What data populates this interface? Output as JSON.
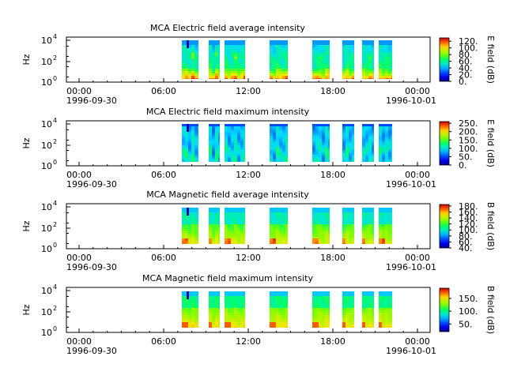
{
  "chart_data": [
    {
      "type": "heatmap",
      "title": "MCA  Electric field average intensity",
      "ylabel": "Hz",
      "colorbar_label": "E field (dB)",
      "colorbar_ticks": [
        "0.",
        "20.",
        "40.",
        "60.",
        "80.",
        "100.",
        "120."
      ],
      "colorbar_range": [
        0,
        130
      ],
      "y_ticks": [
        {
          "base": "10",
          "exp": "0"
        },
        {
          "base": "10",
          "exp": "2"
        },
        {
          "base": "10",
          "exp": "4"
        }
      ],
      "x_ticks": [
        {
          "time": "00:00",
          "date": "1996-09-30"
        },
        {
          "time": "06:00",
          "date": ""
        },
        {
          "time": "12:00",
          "date": ""
        },
        {
          "time": "18:00",
          "date": ""
        },
        {
          "time": "00:00",
          "date": "1996-10-01"
        }
      ],
      "x_range_hours": [
        0,
        26
      ],
      "data_intervals_hours": [
        [
          8.3,
          9.9
        ],
        [
          11.8,
          12.6
        ],
        [
          13.3,
          15.1
        ],
        [
          18.4,
          19.5
        ],
        [
          21.2,
          22.9
        ],
        [
          25.2,
          26.3
        ],
        [
          27.6,
          28.9
        ],
        [
          30.0,
          31.2
        ]
      ],
      "pattern": "e_avg"
    },
    {
      "type": "heatmap",
      "title": "MCA  Electric field maximum intensity",
      "ylabel": "Hz",
      "colorbar_label": "E field (dB)",
      "colorbar_ticks": [
        "0.",
        "50.",
        "100.",
        "150.",
        "200.",
        "250."
      ],
      "colorbar_range": [
        0,
        260
      ],
      "y_ticks": [
        {
          "base": "10",
          "exp": "0"
        },
        {
          "base": "10",
          "exp": "2"
        },
        {
          "base": "10",
          "exp": "4"
        }
      ],
      "x_ticks": [
        {
          "time": "00:00",
          "date": "1996-09-30"
        },
        {
          "time": "06:00",
          "date": ""
        },
        {
          "time": "12:00",
          "date": ""
        },
        {
          "time": "18:00",
          "date": ""
        },
        {
          "time": "00:00",
          "date": "1996-10-01"
        }
      ],
      "x_range_hours": [
        0,
        26
      ],
      "pattern": "e_max"
    },
    {
      "type": "heatmap",
      "title": "MCA  Magnetic field average intensity",
      "ylabel": "Hz",
      "colorbar_label": "B field (dB)",
      "colorbar_ticks": [
        "40.",
        "60.",
        "80.",
        "100.",
        "120.",
        "140.",
        "160.",
        "180."
      ],
      "colorbar_range": [
        40,
        185
      ],
      "y_ticks": [
        {
          "base": "10",
          "exp": "0"
        },
        {
          "base": "10",
          "exp": "2"
        },
        {
          "base": "10",
          "exp": "4"
        }
      ],
      "x_ticks": [
        {
          "time": "00:00",
          "date": "1996-09-30"
        },
        {
          "time": "06:00",
          "date": ""
        },
        {
          "time": "12:00",
          "date": ""
        },
        {
          "time": "18:00",
          "date": ""
        },
        {
          "time": "00:00",
          "date": "1996-10-01"
        }
      ],
      "x_range_hours": [
        0,
        26
      ],
      "pattern": "b_avg"
    },
    {
      "type": "heatmap",
      "title": "MCA  Magnetic field maximum intensity",
      "ylabel": "Hz",
      "colorbar_label": "B field (dB)",
      "colorbar_ticks": [
        "50.",
        "100.",
        "150."
      ],
      "colorbar_range": [
        20,
        190
      ],
      "y_ticks": [
        {
          "base": "10",
          "exp": "0"
        },
        {
          "base": "10",
          "exp": "2"
        },
        {
          "base": "10",
          "exp": "4"
        }
      ],
      "x_ticks": [
        {
          "time": "00:00",
          "date": "1996-09-30"
        },
        {
          "time": "06:00",
          "date": ""
        },
        {
          "time": "12:00",
          "date": ""
        },
        {
          "time": "18:00",
          "date": ""
        },
        {
          "time": "00:00",
          "date": "1996-10-01"
        }
      ],
      "x_range_hours": [
        0,
        26
      ],
      "pattern": "b_max"
    }
  ]
}
